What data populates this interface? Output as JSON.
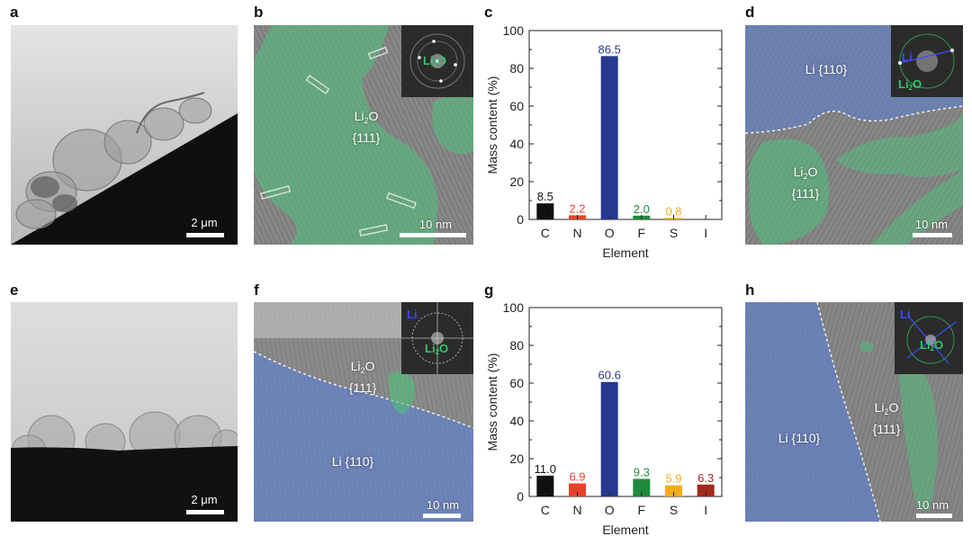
{
  "panels": {
    "a": {
      "label": "a",
      "scale_bar": "2 μm"
    },
    "b": {
      "label": "b",
      "scale_bar": "10 nm",
      "phase_label": {
        "line1": "Li",
        "sub": "2",
        "line1b": "O",
        "line2": "{111}"
      },
      "inset_labels": [
        {
          "text": "Li",
          "sub": "2",
          "tail": "O",
          "color": "#35c46a"
        }
      ]
    },
    "c": {
      "label": "c"
    },
    "d": {
      "label": "d",
      "scale_bar": "10 nm",
      "phase_labels": [
        {
          "line1": "Li {110}"
        },
        {
          "line1": "Li",
          "sub": "2",
          "line1b": "O",
          "line2": "{111}"
        }
      ],
      "inset_labels": [
        {
          "text": "Li",
          "color": "#3a4bff"
        },
        {
          "text": "Li",
          "sub": "2",
          "tail": "O",
          "color": "#35c46a"
        }
      ]
    },
    "e": {
      "label": "e",
      "scale_bar": "2 μm"
    },
    "f": {
      "label": "f",
      "scale_bar": "10 nm",
      "phase_labels": [
        {
          "line1": "Li",
          "sub": "2",
          "line1b": "O",
          "line2": "{111}"
        },
        {
          "line1": "Li {110}"
        }
      ],
      "inset_labels": [
        {
          "text": "Li",
          "color": "#3a4bff"
        },
        {
          "text": "Li",
          "sub": "2",
          "tail": "O",
          "color": "#35c46a"
        }
      ]
    },
    "g": {
      "label": "g"
    },
    "h": {
      "label": "h",
      "scale_bar": "10 nm",
      "phase_labels": [
        {
          "line1": "Li {110}"
        },
        {
          "line1": "Li",
          "sub": "2",
          "line1b": "O",
          "line2": "{111}"
        }
      ],
      "inset_labels": [
        {
          "text": "Li",
          "color": "#3a4bff"
        },
        {
          "text": "Li",
          "sub": "2",
          "tail": "O",
          "color": "#35c46a"
        }
      ]
    }
  },
  "colors": {
    "C": "#111111",
    "N": "#e8412b",
    "O": "#27398f",
    "F": "#1f8a3c",
    "S": "#f3ad1c",
    "I": "#a12a1b",
    "li_overlay": "#5b7fd6",
    "li2o_overlay": "#4fc27a"
  },
  "chart_data": [
    {
      "type": "bar",
      "panel": "c",
      "categories": [
        "C",
        "N",
        "O",
        "F",
        "S",
        "I"
      ],
      "values": [
        8.5,
        2.2,
        86.5,
        2.0,
        0.8,
        null
      ],
      "value_labels": [
        "8.5",
        "2.2",
        "86.5",
        "2.0",
        "0.8",
        ""
      ],
      "xlabel": "Element",
      "ylabel": "Mass content (%)",
      "ylim": [
        0,
        100
      ],
      "yticks": [
        "0",
        "20",
        "40",
        "60",
        "80",
        "100"
      ],
      "grid": false
    },
    {
      "type": "bar",
      "panel": "g",
      "categories": [
        "C",
        "N",
        "O",
        "F",
        "S",
        "I"
      ],
      "values": [
        11.0,
        6.9,
        60.6,
        9.3,
        5.9,
        6.3
      ],
      "value_labels": [
        "11.0",
        "6.9",
        "60.6",
        "9.3",
        "5.9",
        "6.3"
      ],
      "xlabel": "Element",
      "ylabel": "Mass content (%)",
      "ylim": [
        0,
        100
      ],
      "yticks": [
        "0",
        "20",
        "40",
        "60",
        "80",
        "100"
      ],
      "grid": false
    }
  ]
}
